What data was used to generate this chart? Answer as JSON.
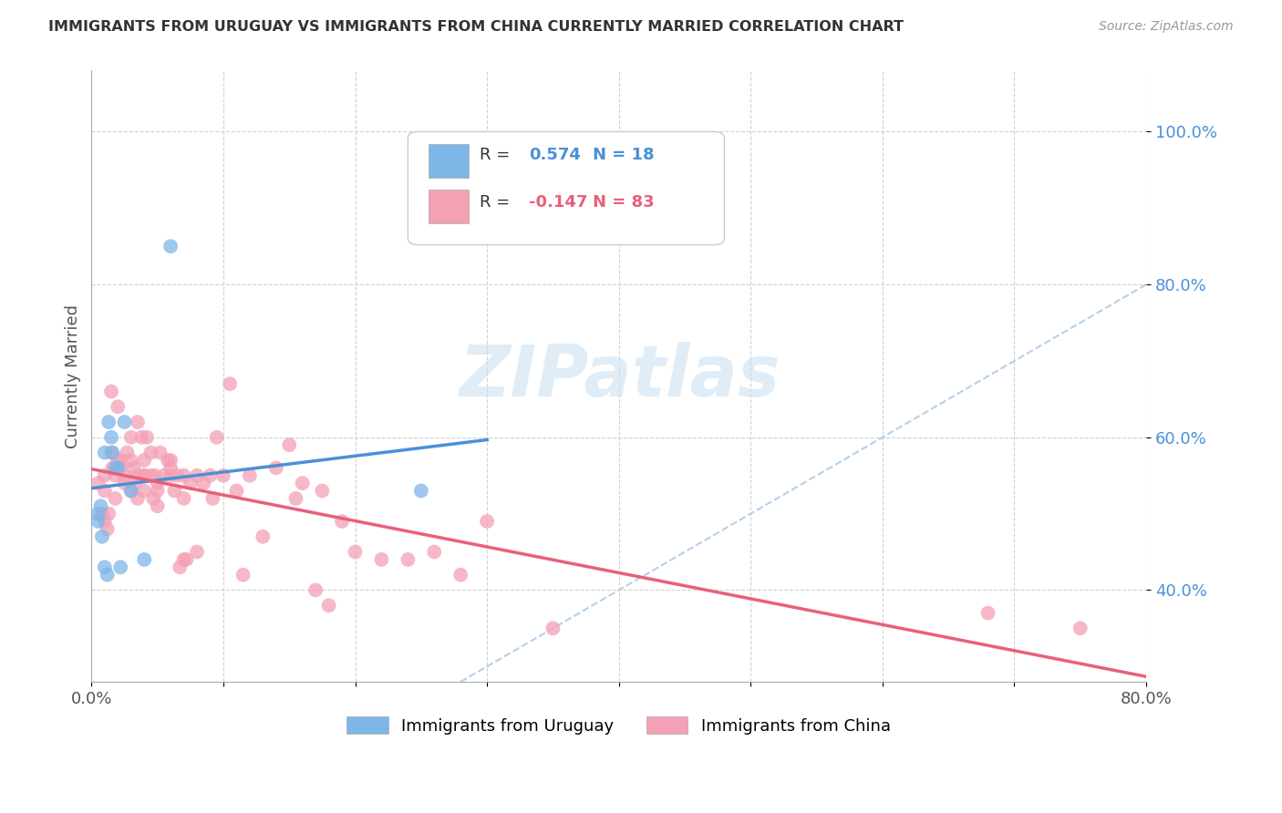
{
  "title": "IMMIGRANTS FROM URUGUAY VS IMMIGRANTS FROM CHINA CURRENTLY MARRIED CORRELATION CHART",
  "source": "Source: ZipAtlas.com",
  "ylabel": "Currently Married",
  "r_uruguay": 0.574,
  "n_uruguay": 18,
  "r_china": -0.147,
  "n_china": 83,
  "color_uruguay": "#7EB6E8",
  "color_china": "#F4A0B5",
  "line_color_uruguay": "#4A90D9",
  "line_color_china": "#E8607A",
  "diagonal_color": "#A8C8E8",
  "watermark": "ZIPatlas",
  "xlim": [
    0.0,
    0.8
  ],
  "ylim": [
    0.28,
    1.08
  ],
  "y_ticks": [
    0.4,
    0.6,
    0.8,
    1.0
  ],
  "y_tick_labels": [
    "40.0%",
    "60.0%",
    "80.0%",
    "100.0%"
  ],
  "x_ticks": [
    0.0,
    0.1,
    0.2,
    0.3,
    0.4,
    0.5,
    0.6,
    0.7,
    0.8
  ],
  "x_tick_labels": [
    "0.0%",
    "",
    "",
    "",
    "",
    "",
    "",
    "",
    "80.0%"
  ],
  "uruguay_x": [
    0.005,
    0.005,
    0.007,
    0.008,
    0.01,
    0.01,
    0.012,
    0.013,
    0.015,
    0.016,
    0.018,
    0.02,
    0.022,
    0.025,
    0.03,
    0.04,
    0.06,
    0.25
  ],
  "uruguay_y": [
    0.5,
    0.49,
    0.51,
    0.47,
    0.58,
    0.43,
    0.42,
    0.62,
    0.6,
    0.58,
    0.56,
    0.56,
    0.43,
    0.62,
    0.53,
    0.44,
    0.85,
    0.53
  ],
  "china_x": [
    0.005,
    0.008,
    0.01,
    0.01,
    0.01,
    0.012,
    0.013,
    0.015,
    0.015,
    0.016,
    0.018,
    0.018,
    0.02,
    0.02,
    0.022,
    0.022,
    0.025,
    0.025,
    0.027,
    0.03,
    0.03,
    0.03,
    0.032,
    0.033,
    0.035,
    0.035,
    0.035,
    0.038,
    0.04,
    0.04,
    0.04,
    0.04,
    0.042,
    0.045,
    0.045,
    0.047,
    0.048,
    0.05,
    0.05,
    0.05,
    0.052,
    0.055,
    0.058,
    0.06,
    0.06,
    0.06,
    0.063,
    0.065,
    0.067,
    0.07,
    0.07,
    0.07,
    0.072,
    0.075,
    0.08,
    0.08,
    0.085,
    0.09,
    0.092,
    0.095,
    0.1,
    0.105,
    0.11,
    0.115,
    0.12,
    0.13,
    0.14,
    0.15,
    0.155,
    0.16,
    0.17,
    0.175,
    0.18,
    0.19,
    0.2,
    0.22,
    0.24,
    0.26,
    0.28,
    0.3,
    0.35,
    0.68,
    0.75
  ],
  "china_y": [
    0.54,
    0.5,
    0.55,
    0.53,
    0.49,
    0.48,
    0.5,
    0.66,
    0.58,
    0.56,
    0.55,
    0.52,
    0.64,
    0.57,
    0.57,
    0.56,
    0.55,
    0.54,
    0.58,
    0.53,
    0.6,
    0.57,
    0.56,
    0.54,
    0.52,
    0.55,
    0.62,
    0.6,
    0.57,
    0.55,
    0.53,
    0.55,
    0.6,
    0.58,
    0.55,
    0.52,
    0.55,
    0.54,
    0.53,
    0.51,
    0.58,
    0.55,
    0.57,
    0.55,
    0.57,
    0.56,
    0.53,
    0.55,
    0.43,
    0.44,
    0.55,
    0.52,
    0.44,
    0.54,
    0.55,
    0.45,
    0.54,
    0.55,
    0.52,
    0.6,
    0.55,
    0.67,
    0.53,
    0.42,
    0.55,
    0.47,
    0.56,
    0.59,
    0.52,
    0.54,
    0.4,
    0.53,
    0.38,
    0.49,
    0.45,
    0.44,
    0.44,
    0.45,
    0.42,
    0.49,
    0.35,
    0.37,
    0.35
  ]
}
